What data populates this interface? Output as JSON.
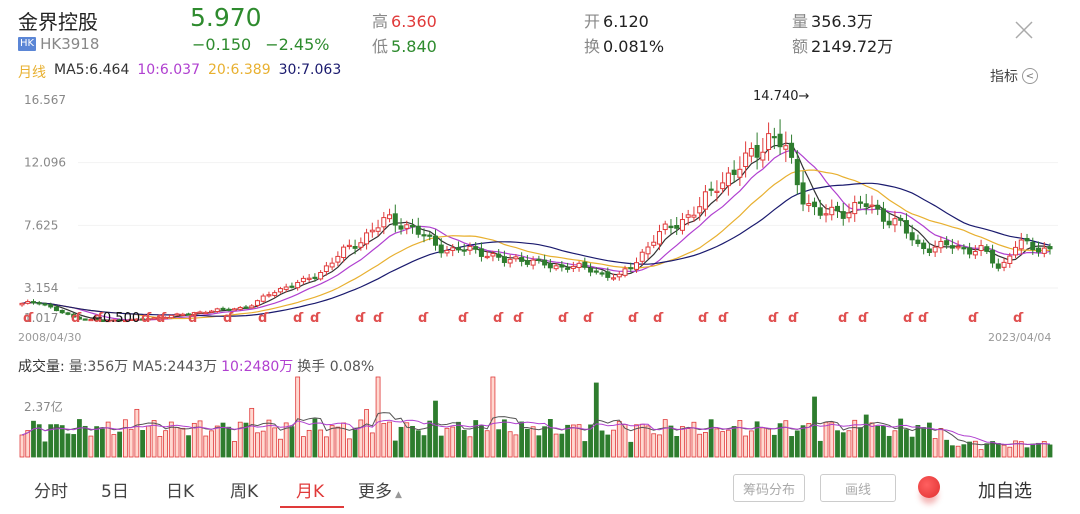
{
  "header": {
    "stock_name": "金界控股",
    "market_badge": "HK",
    "stock_code": "HK3918",
    "price": "5.970",
    "change": "−0.150",
    "change_pct": "−2.45%",
    "high_label": "高",
    "high_value": "6.360",
    "low_label": "低",
    "low_value": "5.840",
    "open_label": "开",
    "open_value": "6.120",
    "turnover_label": "换",
    "turnover_value": "0.081%",
    "volume_label": "量",
    "volume_value": "356.3万",
    "amount_label": "额",
    "amount_value": "2149.72万",
    "close_icon": "close-icon"
  },
  "ma_row": {
    "period": "月线",
    "ma5": "MA5:6.464",
    "ma10": "10:6.037",
    "ma20": "20:6.389",
    "ma30": "30:7.063"
  },
  "indicator_button": {
    "label": "指标",
    "icon": "chevron-left-circle-icon"
  },
  "colors": {
    "up": "#e03a3a",
    "down": "#2e7d2e",
    "ma5": "#333333",
    "ma10": "#b040d0",
    "ma20": "#e8b030",
    "ma30": "#1a1a6e"
  },
  "main_chart": {
    "y_ticks": [
      "16.567",
      "12.096",
      "7.625",
      "3.154",
      "1.017"
    ],
    "high_annotation": "14.740→",
    "low_annotation": "←0.500",
    "date_start": "2008/04/30",
    "date_end": "2023/04/04"
  },
  "volume_chart": {
    "title": "成交量:",
    "vol": "量:356万",
    "ma5": "MA5:2443万",
    "ma10": "10:2480万",
    "turnover": "换手 0.08%",
    "y_tick": "2.37亿"
  },
  "tabs": [
    {
      "label": "分时",
      "active": false
    },
    {
      "label": "5日",
      "active": false
    },
    {
      "label": "日K",
      "active": false
    },
    {
      "label": "周K",
      "active": false
    },
    {
      "label": "月K",
      "active": true
    },
    {
      "label": "更多",
      "active": false
    }
  ],
  "buttons": {
    "chip_distribution": "筹码分布",
    "draw_line": "画线",
    "add_watchlist": "加自选"
  },
  "chart_data": [
    {
      "type": "candlestick",
      "title": "金界控股 HK3918 月K",
      "xlabel": "",
      "ylabel": "",
      "x_range": [
        "2008/04/30",
        "2023/04/04"
      ],
      "ylim": [
        0.5,
        16.567
      ],
      "y_ticks": [
        16.567,
        12.096,
        7.625,
        3.154,
        1.017
      ],
      "annotations": [
        {
          "text": "14.740",
          "type": "period high"
        },
        {
          "text": "0.500",
          "type": "period low"
        }
      ],
      "legend": [
        "MA5:6.464",
        "MA10:6.037",
        "MA20:6.389",
        "MA30:7.063"
      ],
      "series": [
        {
          "name": "close (approx, monthly, sampled)",
          "values": [
            2.0,
            2.2,
            1.6,
            1.1,
            0.9,
            0.8,
            0.9,
            0.9,
            1.0,
            1.2,
            1.3,
            1.5,
            1.6,
            1.7,
            2.0,
            2.8,
            3.3,
            3.6,
            4.3,
            5.4,
            6.2,
            7.2,
            8.0,
            7.8,
            7.0,
            6.2,
            5.8,
            5.9,
            5.7,
            5.0,
            5.3,
            5.0,
            4.6,
            4.8,
            4.5,
            4.2,
            3.9,
            5.0,
            6.6,
            7.4,
            8.2,
            9.0,
            10.8,
            11.4,
            12.6,
            14.0,
            13.2,
            10.0,
            8.3,
            8.6,
            8.8,
            9.1,
            8.3,
            7.6,
            6.2,
            6.0,
            6.2,
            5.9,
            5.8,
            4.5,
            6.4,
            6.0,
            5.97
          ]
        }
      ]
    },
    {
      "type": "bar",
      "title": "成交量",
      "y_ticks": [
        "2.37亿"
      ],
      "legend": [
        "量:356万",
        "MA5:2443万",
        "10:2480万"
      ],
      "note": "monthly volume bars, red=up, green=down"
    }
  ]
}
